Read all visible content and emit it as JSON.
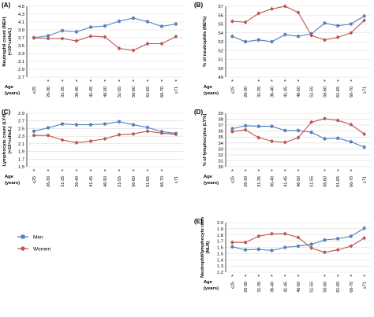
{
  "legend": {
    "men": "Men",
    "women": "Women"
  },
  "colors": {
    "men": "#4f81bd",
    "women": "#c0504d",
    "grid": "#d9d9d9"
  },
  "chart_data": [
    {
      "type": "line",
      "panel": "A",
      "ylabel": "Neutrophil count (NE#)",
      "yunit": "(×10⁹cells/L)",
      "xlabel_line1": "Age",
      "xlabel_line2": "(years)",
      "categories": [
        "≤25",
        "26-30",
        "31-35",
        "36-40",
        "41-45",
        "46-50",
        "51-55",
        "56-60",
        "61-65",
        "66-70",
        "≥71"
      ],
      "ylim": [
        2.7,
        4.5
      ],
      "yticks": [
        "2.7",
        "2.9",
        "3.1",
        "3.3",
        "3.5",
        "3.7",
        "3.9",
        "4.1",
        "4.3",
        "4.5"
      ],
      "series": [
        {
          "name": "Men",
          "values": [
            3.7,
            3.75,
            3.88,
            3.85,
            3.97,
            4.0,
            4.12,
            4.2,
            4.11,
            3.99,
            4.05
          ]
        },
        {
          "name": "Women",
          "values": [
            3.7,
            3.68,
            3.68,
            3.62,
            3.74,
            3.72,
            3.43,
            3.38,
            3.55,
            3.55,
            3.73
          ]
        }
      ],
      "significance": [
        "",
        "*",
        "*",
        "*",
        "*",
        "*",
        "*",
        "*",
        "*",
        "*",
        "*"
      ]
    },
    {
      "type": "line",
      "panel": "B",
      "ylabel": "% of neutrophils (NE%)",
      "xlabel_line1": "Age",
      "xlabel_line2": "(years)",
      "categories": [
        "≤25",
        "26-30",
        "31-35",
        "36-40",
        "41-45",
        "46-50",
        "51-55",
        "56-60",
        "61-65",
        "66-70",
        "≥71"
      ],
      "ylim": [
        49,
        57
      ],
      "yticks": [
        "49",
        "50",
        "51",
        "52",
        "53",
        "54",
        "55",
        "56",
        "57"
      ],
      "series": [
        {
          "name": "Men",
          "values": [
            53.6,
            53.0,
            53.2,
            53.0,
            53.8,
            53.6,
            53.9,
            55.1,
            54.8,
            55.0,
            55.9
          ]
        },
        {
          "name": "Women",
          "values": [
            55.3,
            55.2,
            56.2,
            56.7,
            57.0,
            56.3,
            53.7,
            53.2,
            53.5,
            54.0,
            55.4
          ]
        }
      ],
      "significance": [
        "*",
        "",
        "*",
        "*",
        "*",
        "*",
        "",
        "*",
        "*",
        "*",
        ""
      ]
    },
    {
      "type": "line",
      "panel": "C",
      "ylabel": "Lymphocyte count (LY#)",
      "yunit": "(×10⁹cells/L)",
      "xlabel_line1": "Age",
      "xlabel_line2": "(years)",
      "categories": [
        "≤25",
        "26-30",
        "31-35",
        "36-40",
        "41-45",
        "46-50",
        "51-55",
        "56-60",
        "61-65",
        "66-70",
        "≥71"
      ],
      "ylim": [
        1.5,
        2.9
      ],
      "yticks": [
        "1.5",
        "1.7",
        "1.9",
        "2.1",
        "2.3",
        "2.5",
        "2.7",
        "2.9"
      ],
      "series": [
        {
          "name": "Men",
          "values": [
            2.43,
            2.52,
            2.62,
            2.6,
            2.6,
            2.62,
            2.68,
            2.6,
            2.53,
            2.42,
            2.37
          ]
        },
        {
          "name": "Women",
          "values": [
            2.32,
            2.32,
            2.2,
            2.13,
            2.17,
            2.23,
            2.34,
            2.36,
            2.43,
            2.38,
            2.35
          ]
        }
      ],
      "significance": [
        "*",
        "*",
        "*",
        "*",
        "*",
        "*",
        "*",
        "*",
        "*",
        "*",
        ""
      ]
    },
    {
      "type": "line",
      "panel": "D",
      "ylabel": "% of lymphocytes (LY%)",
      "xlabel_line1": "Age",
      "xlabel_line2": "(years)",
      "categories": [
        "≤25",
        "26-30",
        "31-35",
        "36-40",
        "41-45",
        "46-50",
        "51-55",
        "56-60",
        "61-65",
        "66-70",
        "≥71"
      ],
      "ylim": [
        30,
        39
      ],
      "yticks": [
        "30",
        "31",
        "32",
        "33",
        "34",
        "35",
        "36",
        "37",
        "38",
        "39"
      ],
      "series": [
        {
          "name": "Men",
          "values": [
            36.4,
            36.9,
            36.8,
            36.8,
            36.1,
            36.1,
            35.8,
            34.7,
            34.8,
            34.2,
            33.3
          ]
        },
        {
          "name": "Women",
          "values": [
            35.9,
            36.2,
            34.9,
            34.3,
            34.1,
            34.9,
            37.5,
            38.1,
            37.8,
            37.1,
            35.5
          ]
        }
      ],
      "significance": [
        "*",
        "*",
        "*",
        "*",
        "*",
        "*",
        "",
        "*",
        "*",
        "*",
        ""
      ]
    },
    {
      "type": "line",
      "panel": "E",
      "ylabel": "Neutrophil/lymphocyte ratio",
      "yunit": "(NLR)",
      "xlabel_line1": "Age",
      "xlabel_line2": "(years)",
      "categories": [
        "≤25",
        "26-30",
        "31-35",
        "36-40",
        "41-45",
        "46-50",
        "51-55",
        "56-60",
        "61-65",
        "66-70",
        "≥71"
      ],
      "ylim": [
        1.2,
        2.0
      ],
      "yticks": [
        "1.2",
        "1.3",
        "1.4",
        "1.5",
        "1.6",
        "1.7",
        "1.8",
        "1.9",
        "2.0"
      ],
      "series": [
        {
          "name": "Men",
          "values": [
            1.61,
            1.56,
            1.57,
            1.55,
            1.6,
            1.62,
            1.65,
            1.72,
            1.74,
            1.78,
            1.91
          ]
        },
        {
          "name": "Women",
          "values": [
            1.68,
            1.68,
            1.78,
            1.82,
            1.82,
            1.76,
            1.59,
            1.52,
            1.56,
            1.62,
            1.75
          ]
        }
      ],
      "significance": [
        "*",
        "*",
        "*",
        "*",
        "*",
        "*",
        "",
        "*",
        "*",
        "*",
        "*"
      ]
    }
  ]
}
